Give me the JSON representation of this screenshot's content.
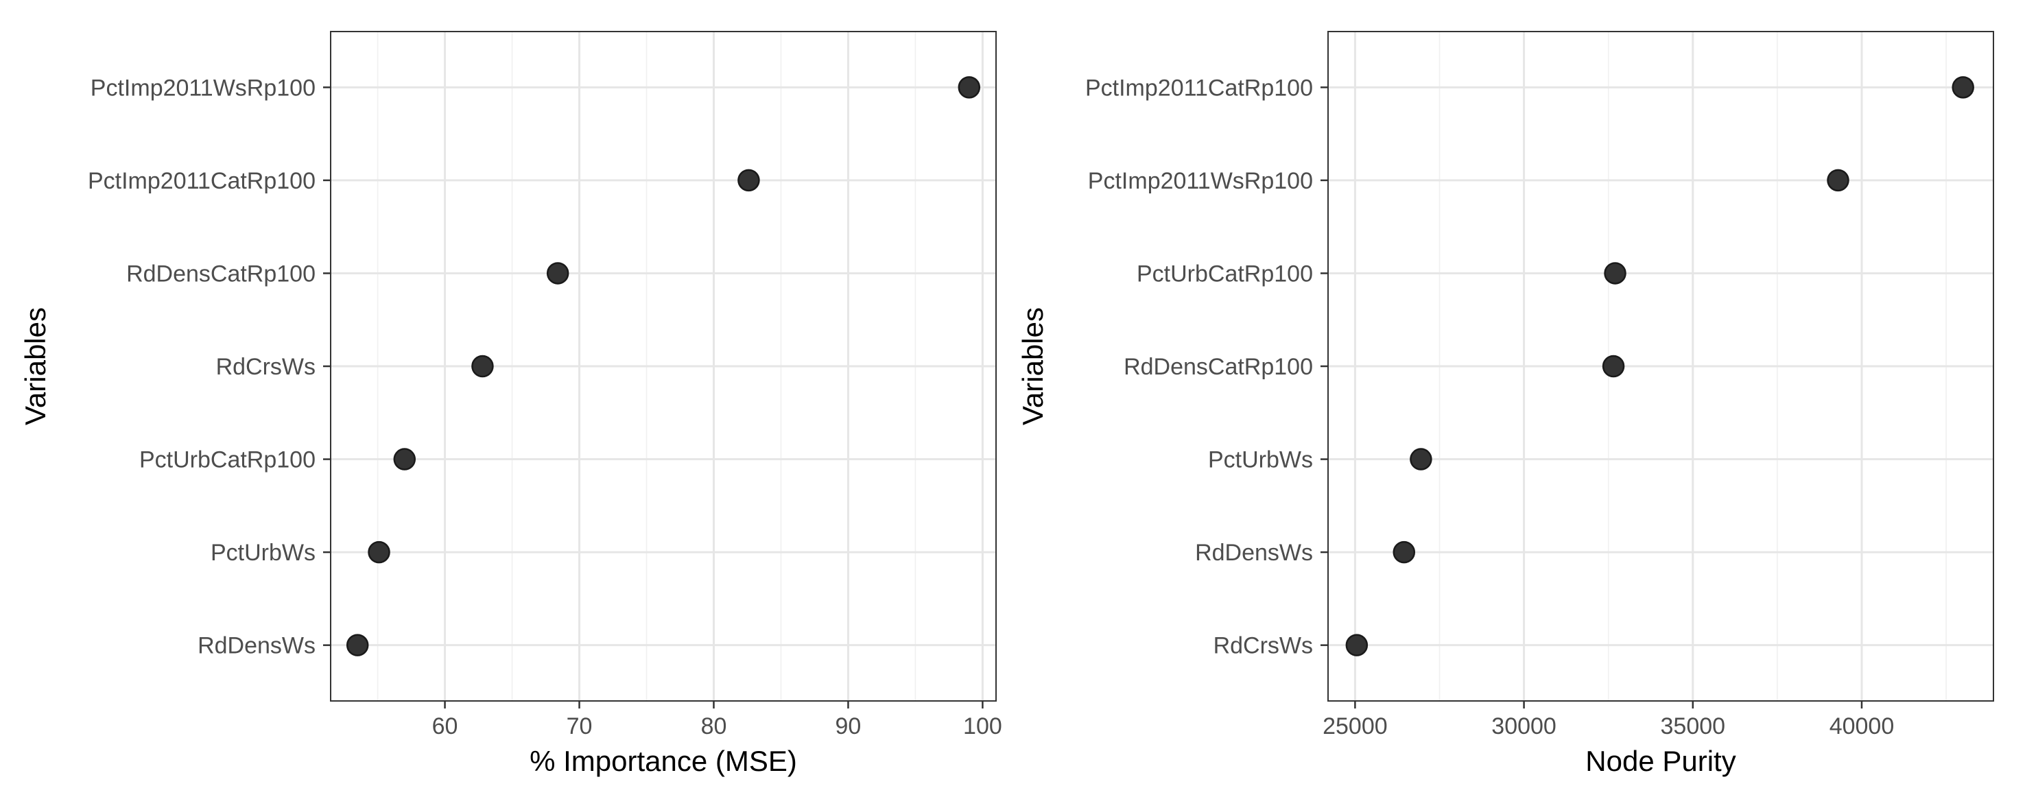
{
  "chart_data": [
    {
      "type": "scatter",
      "xlabel": "% Importance (MSE)",
      "ylabel": "Variables",
      "xlim": [
        51.5,
        101
      ],
      "xticks": [
        60,
        70,
        80,
        90,
        100
      ],
      "grid": true,
      "categories": [
        "PctImp2011WsRp100",
        "PctImp2011CatRp100",
        "RdDensCatRp100",
        "RdCrsWs",
        "PctUrbCatRp100",
        "PctUrbWs",
        "RdDensWs"
      ],
      "values": [
        99.0,
        82.6,
        68.4,
        62.8,
        57.0,
        55.1,
        53.5
      ]
    },
    {
      "type": "scatter",
      "xlabel": "Node Purity",
      "ylabel": "Variables",
      "xlim": [
        24200,
        43900
      ],
      "xticks": [
        25000,
        30000,
        35000,
        40000
      ],
      "grid": true,
      "categories": [
        "PctImp2011CatRp100",
        "PctImp2011WsRp100",
        "PctUrbCatRp100",
        "RdDensCatRp100",
        "PctUrbWs",
        "RdDensWs",
        "RdCrsWs"
      ],
      "values": [
        43000,
        39300,
        32700,
        32650,
        26950,
        26450,
        25050
      ]
    }
  ]
}
